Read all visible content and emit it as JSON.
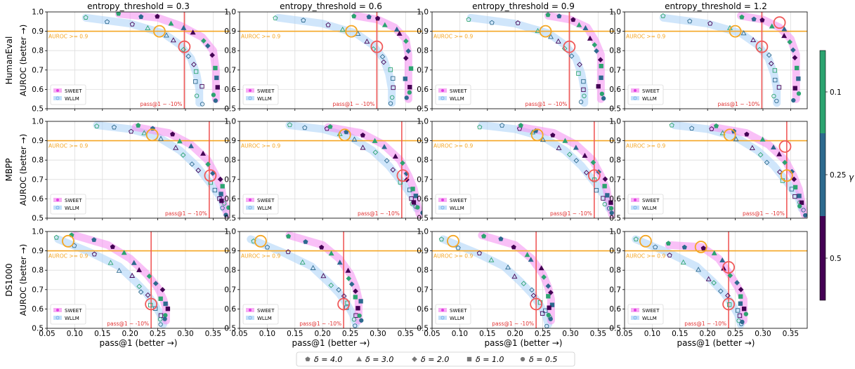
{
  "chart_data": {
    "type": "scatter",
    "col_titles": [
      "entropy_threshold = 0.3",
      "entropy_threshold = 0.6",
      "entropy_threshold = 0.9",
      "entropy_threshold = 1.2"
    ],
    "row_labels": [
      "HumanEval",
      "MBPP",
      "DS1000"
    ],
    "xlabel": "pass@1 (better →)",
    "ylabel": "AUROC (better →)",
    "xlim": [
      0.05,
      0.38
    ],
    "ylim": [
      0.5,
      1.0
    ],
    "xticks": [
      "0.05",
      "0.10",
      "0.15",
      "0.20",
      "0.25",
      "0.30",
      "0.35"
    ],
    "yticks": [
      "0.5",
      "0.6",
      "0.7",
      "0.8",
      "0.9",
      "1.0"
    ],
    "hline": {
      "y": 0.9,
      "label": "AUROC >= 0.9",
      "color": "#f5a623"
    },
    "vline_label": "pass@1 ~ -10%",
    "vline_x": [
      0.298,
      0.343,
      0.238
    ],
    "series": [
      {
        "name": "SWEET",
        "band_color": "#f48cf0",
        "filled": true
      },
      {
        "name": "WLLM",
        "band_color": "#a9d1f7",
        "filled": false
      }
    ],
    "legend_placement": "lower-left",
    "colorbar": {
      "label": "γ",
      "ticks": [
        "0.1",
        "0.25",
        "0.5"
      ],
      "colors": [
        "#2ca470",
        "#2d6a8e",
        "#440154"
      ]
    },
    "marker_legend": [
      "δ = 4.0",
      "δ = 3.0",
      "δ = 2.0",
      "δ = 1.0",
      "δ = 0.5"
    ],
    "curves": {
      "HumanEval": {
        "SWEET": [
          [
            [
              0.18,
              0.99
            ],
            [
              0.25,
              0.97
            ],
            [
              0.29,
              0.93
            ],
            [
              0.33,
              0.87
            ],
            [
              0.35,
              0.8
            ],
            [
              0.355,
              0.7
            ],
            [
              0.355,
              0.6
            ],
            [
              0.355,
              0.55
            ]
          ],
          [
            [
              0.26,
              0.98
            ],
            [
              0.3,
              0.96
            ],
            [
              0.33,
              0.92
            ],
            [
              0.35,
              0.86
            ],
            [
              0.355,
              0.78
            ],
            [
              0.355,
              0.7
            ],
            [
              0.355,
              0.6
            ],
            [
              0.355,
              0.55
            ]
          ],
          [
            [
              0.26,
              0.98
            ],
            [
              0.3,
              0.96
            ],
            [
              0.33,
              0.92
            ],
            [
              0.345,
              0.85
            ],
            [
              0.355,
              0.78
            ],
            [
              0.355,
              0.7
            ],
            [
              0.355,
              0.6
            ],
            [
              0.355,
              0.55
            ]
          ],
          [
            [
              0.26,
              0.98
            ],
            [
              0.3,
              0.96
            ],
            [
              0.33,
              0.92
            ],
            [
              0.35,
              0.86
            ],
            [
              0.36,
              0.78
            ],
            [
              0.36,
              0.7
            ],
            [
              0.36,
              0.6
            ],
            [
              0.36,
              0.55
            ]
          ]
        ],
        "WLLM": [
          [
            [
              0.12,
              0.97
            ],
            [
              0.2,
              0.94
            ],
            [
              0.26,
              0.89
            ],
            [
              0.29,
              0.83
            ],
            [
              0.31,
              0.76
            ],
            [
              0.32,
              0.68
            ],
            [
              0.325,
              0.6
            ],
            [
              0.325,
              0.53
            ]
          ],
          [
            [
              0.12,
              0.97
            ],
            [
              0.2,
              0.94
            ],
            [
              0.26,
              0.89
            ],
            [
              0.29,
              0.83
            ],
            [
              0.31,
              0.76
            ],
            [
              0.32,
              0.68
            ],
            [
              0.325,
              0.6
            ],
            [
              0.325,
              0.53
            ]
          ],
          [
            [
              0.12,
              0.97
            ],
            [
              0.2,
              0.94
            ],
            [
              0.26,
              0.89
            ],
            [
              0.29,
              0.83
            ],
            [
              0.31,
              0.76
            ],
            [
              0.32,
              0.68
            ],
            [
              0.325,
              0.6
            ],
            [
              0.325,
              0.53
            ]
          ],
          [
            [
              0.12,
              0.97
            ],
            [
              0.2,
              0.94
            ],
            [
              0.26,
              0.89
            ],
            [
              0.29,
              0.83
            ],
            [
              0.31,
              0.76
            ],
            [
              0.32,
              0.68
            ],
            [
              0.325,
              0.6
            ],
            [
              0.325,
              0.53
            ]
          ]
        ]
      },
      "MBPP": {
        "SWEET": [
          [
            [
              0.21,
              0.97
            ],
            [
              0.27,
              0.94
            ],
            [
              0.31,
              0.88
            ],
            [
              0.34,
              0.8
            ],
            [
              0.355,
              0.72
            ],
            [
              0.365,
              0.65
            ],
            [
              0.37,
              0.58
            ],
            [
              0.375,
              0.52
            ]
          ],
          [
            [
              0.21,
              0.97
            ],
            [
              0.27,
              0.94
            ],
            [
              0.31,
              0.88
            ],
            [
              0.34,
              0.8
            ],
            [
              0.355,
              0.72
            ],
            [
              0.365,
              0.65
            ],
            [
              0.37,
              0.58
            ],
            [
              0.375,
              0.52
            ]
          ],
          [
            [
              0.21,
              0.97
            ],
            [
              0.27,
              0.94
            ],
            [
              0.31,
              0.88
            ],
            [
              0.34,
              0.8
            ],
            [
              0.355,
              0.72
            ],
            [
              0.365,
              0.65
            ],
            [
              0.37,
              0.58
            ],
            [
              0.375,
              0.52
            ]
          ],
          [
            [
              0.21,
              0.97
            ],
            [
              0.27,
              0.94
            ],
            [
              0.31,
              0.88
            ],
            [
              0.34,
              0.8
            ],
            [
              0.355,
              0.72
            ],
            [
              0.365,
              0.65
            ],
            [
              0.37,
              0.58
            ],
            [
              0.375,
              0.52
            ]
          ]
        ],
        "WLLM": [
          [
            [
              0.14,
              0.98
            ],
            [
              0.2,
              0.96
            ],
            [
              0.25,
              0.92
            ],
            [
              0.29,
              0.85
            ],
            [
              0.32,
              0.77
            ],
            [
              0.345,
              0.68
            ],
            [
              0.365,
              0.6
            ],
            [
              0.37,
              0.55
            ]
          ],
          [
            [
              0.14,
              0.98
            ],
            [
              0.2,
              0.96
            ],
            [
              0.25,
              0.92
            ],
            [
              0.29,
              0.85
            ],
            [
              0.32,
              0.77
            ],
            [
              0.345,
              0.68
            ],
            [
              0.365,
              0.6
            ],
            [
              0.37,
              0.55
            ]
          ],
          [
            [
              0.14,
              0.98
            ],
            [
              0.2,
              0.96
            ],
            [
              0.25,
              0.92
            ],
            [
              0.29,
              0.85
            ],
            [
              0.32,
              0.77
            ],
            [
              0.345,
              0.68
            ],
            [
              0.365,
              0.6
            ],
            [
              0.37,
              0.55
            ]
          ],
          [
            [
              0.14,
              0.98
            ],
            [
              0.2,
              0.96
            ],
            [
              0.25,
              0.92
            ],
            [
              0.29,
              0.85
            ],
            [
              0.32,
              0.77
            ],
            [
              0.345,
              0.68
            ],
            [
              0.365,
              0.6
            ],
            [
              0.37,
              0.55
            ]
          ]
        ]
      },
      "DS1000": {
        "SWEET": [
          [
            [
              0.1,
              0.98
            ],
            [
              0.16,
              0.93
            ],
            [
              0.2,
              0.86
            ],
            [
              0.23,
              0.78
            ],
            [
              0.25,
              0.71
            ],
            [
              0.26,
              0.65
            ],
            [
              0.265,
              0.6
            ],
            [
              0.265,
              0.54
            ]
          ],
          [
            [
              0.14,
              0.98
            ],
            [
              0.2,
              0.93
            ],
            [
              0.23,
              0.86
            ],
            [
              0.25,
              0.78
            ],
            [
              0.26,
              0.71
            ],
            [
              0.265,
              0.65
            ],
            [
              0.265,
              0.6
            ],
            [
              0.265,
              0.54
            ]
          ],
          [
            [
              0.14,
              0.98
            ],
            [
              0.2,
              0.93
            ],
            [
              0.23,
              0.86
            ],
            [
              0.25,
              0.78
            ],
            [
              0.26,
              0.71
            ],
            [
              0.265,
              0.65
            ],
            [
              0.265,
              0.6
            ],
            [
              0.265,
              0.54
            ]
          ],
          [
            [
              0.13,
              0.93
            ],
            [
              0.19,
              0.92
            ],
            [
              0.22,
              0.86
            ],
            [
              0.24,
              0.78
            ],
            [
              0.255,
              0.71
            ],
            [
              0.265,
              0.65
            ],
            [
              0.265,
              0.6
            ],
            [
              0.265,
              0.54
            ]
          ]
        ],
        "WLLM": [
          [
            [
              0.07,
              0.96
            ],
            [
              0.13,
              0.89
            ],
            [
              0.18,
              0.82
            ],
            [
              0.21,
              0.74
            ],
            [
              0.23,
              0.68
            ],
            [
              0.245,
              0.62
            ],
            [
              0.255,
              0.57
            ],
            [
              0.26,
              0.52
            ]
          ],
          [
            [
              0.07,
              0.96
            ],
            [
              0.13,
              0.89
            ],
            [
              0.18,
              0.82
            ],
            [
              0.21,
              0.74
            ],
            [
              0.23,
              0.68
            ],
            [
              0.245,
              0.62
            ],
            [
              0.255,
              0.57
            ],
            [
              0.26,
              0.52
            ]
          ],
          [
            [
              0.07,
              0.96
            ],
            [
              0.13,
              0.89
            ],
            [
              0.18,
              0.82
            ],
            [
              0.21,
              0.74
            ],
            [
              0.23,
              0.68
            ],
            [
              0.245,
              0.62
            ],
            [
              0.255,
              0.57
            ],
            [
              0.26,
              0.52
            ]
          ],
          [
            [
              0.07,
              0.96
            ],
            [
              0.13,
              0.89
            ],
            [
              0.18,
              0.82
            ],
            [
              0.21,
              0.74
            ],
            [
              0.23,
              0.68
            ],
            [
              0.245,
              0.62
            ],
            [
              0.255,
              0.57
            ],
            [
              0.26,
              0.52
            ]
          ]
        ]
      }
    },
    "highlights": {
      "HumanEval": [
        [
          [
            0.253,
            0.9,
            "#f5a623"
          ],
          [
            0.298,
            0.82,
            "#f05a5a"
          ]
        ],
        [
          [
            0.252,
            0.9,
            "#f5a623"
          ],
          [
            0.298,
            0.82,
            "#f05a5a"
          ]
        ],
        [
          [
            0.255,
            0.9,
            "#f5a623"
          ],
          [
            0.298,
            0.82,
            "#f05a5a"
          ]
        ],
        [
          [
            0.25,
            0.9,
            "#f5a623"
          ],
          [
            0.298,
            0.82,
            "#f05a5a"
          ],
          [
            0.33,
            0.945,
            "#f05a5a"
          ]
        ]
      ],
      "MBPP": [
        [
          [
            0.24,
            0.93,
            "#f5a623"
          ],
          [
            0.345,
            0.72,
            "#f05a5a"
          ]
        ],
        [
          [
            0.24,
            0.93,
            "#f5a623"
          ],
          [
            0.345,
            0.72,
            "#f05a5a"
          ]
        ],
        [
          [
            0.24,
            0.93,
            "#f5a623"
          ],
          [
            0.343,
            0.72,
            "#f05a5a"
          ]
        ],
        [
          [
            0.24,
            0.93,
            "#f5a623"
          ],
          [
            0.34,
            0.87,
            "#f05a5a"
          ],
          [
            0.343,
            0.72,
            "#f5a623"
          ]
        ]
      ],
      "DS1000": [
        [
          [
            0.088,
            0.95,
            "#f5a623"
          ],
          [
            0.238,
            0.625,
            "#f05a5a"
          ]
        ],
        [
          [
            0.088,
            0.95,
            "#f5a623"
          ],
          [
            0.238,
            0.625,
            "#f05a5a"
          ]
        ],
        [
          [
            0.088,
            0.95,
            "#f5a623"
          ],
          [
            0.238,
            0.625,
            "#f05a5a"
          ]
        ],
        [
          [
            0.088,
            0.95,
            "#f5a623"
          ],
          [
            0.188,
            0.92,
            "#f5a623"
          ],
          [
            0.238,
            0.815,
            "#f05a5a"
          ],
          [
            0.238,
            0.625,
            "#f05a5a"
          ]
        ]
      ]
    }
  }
}
